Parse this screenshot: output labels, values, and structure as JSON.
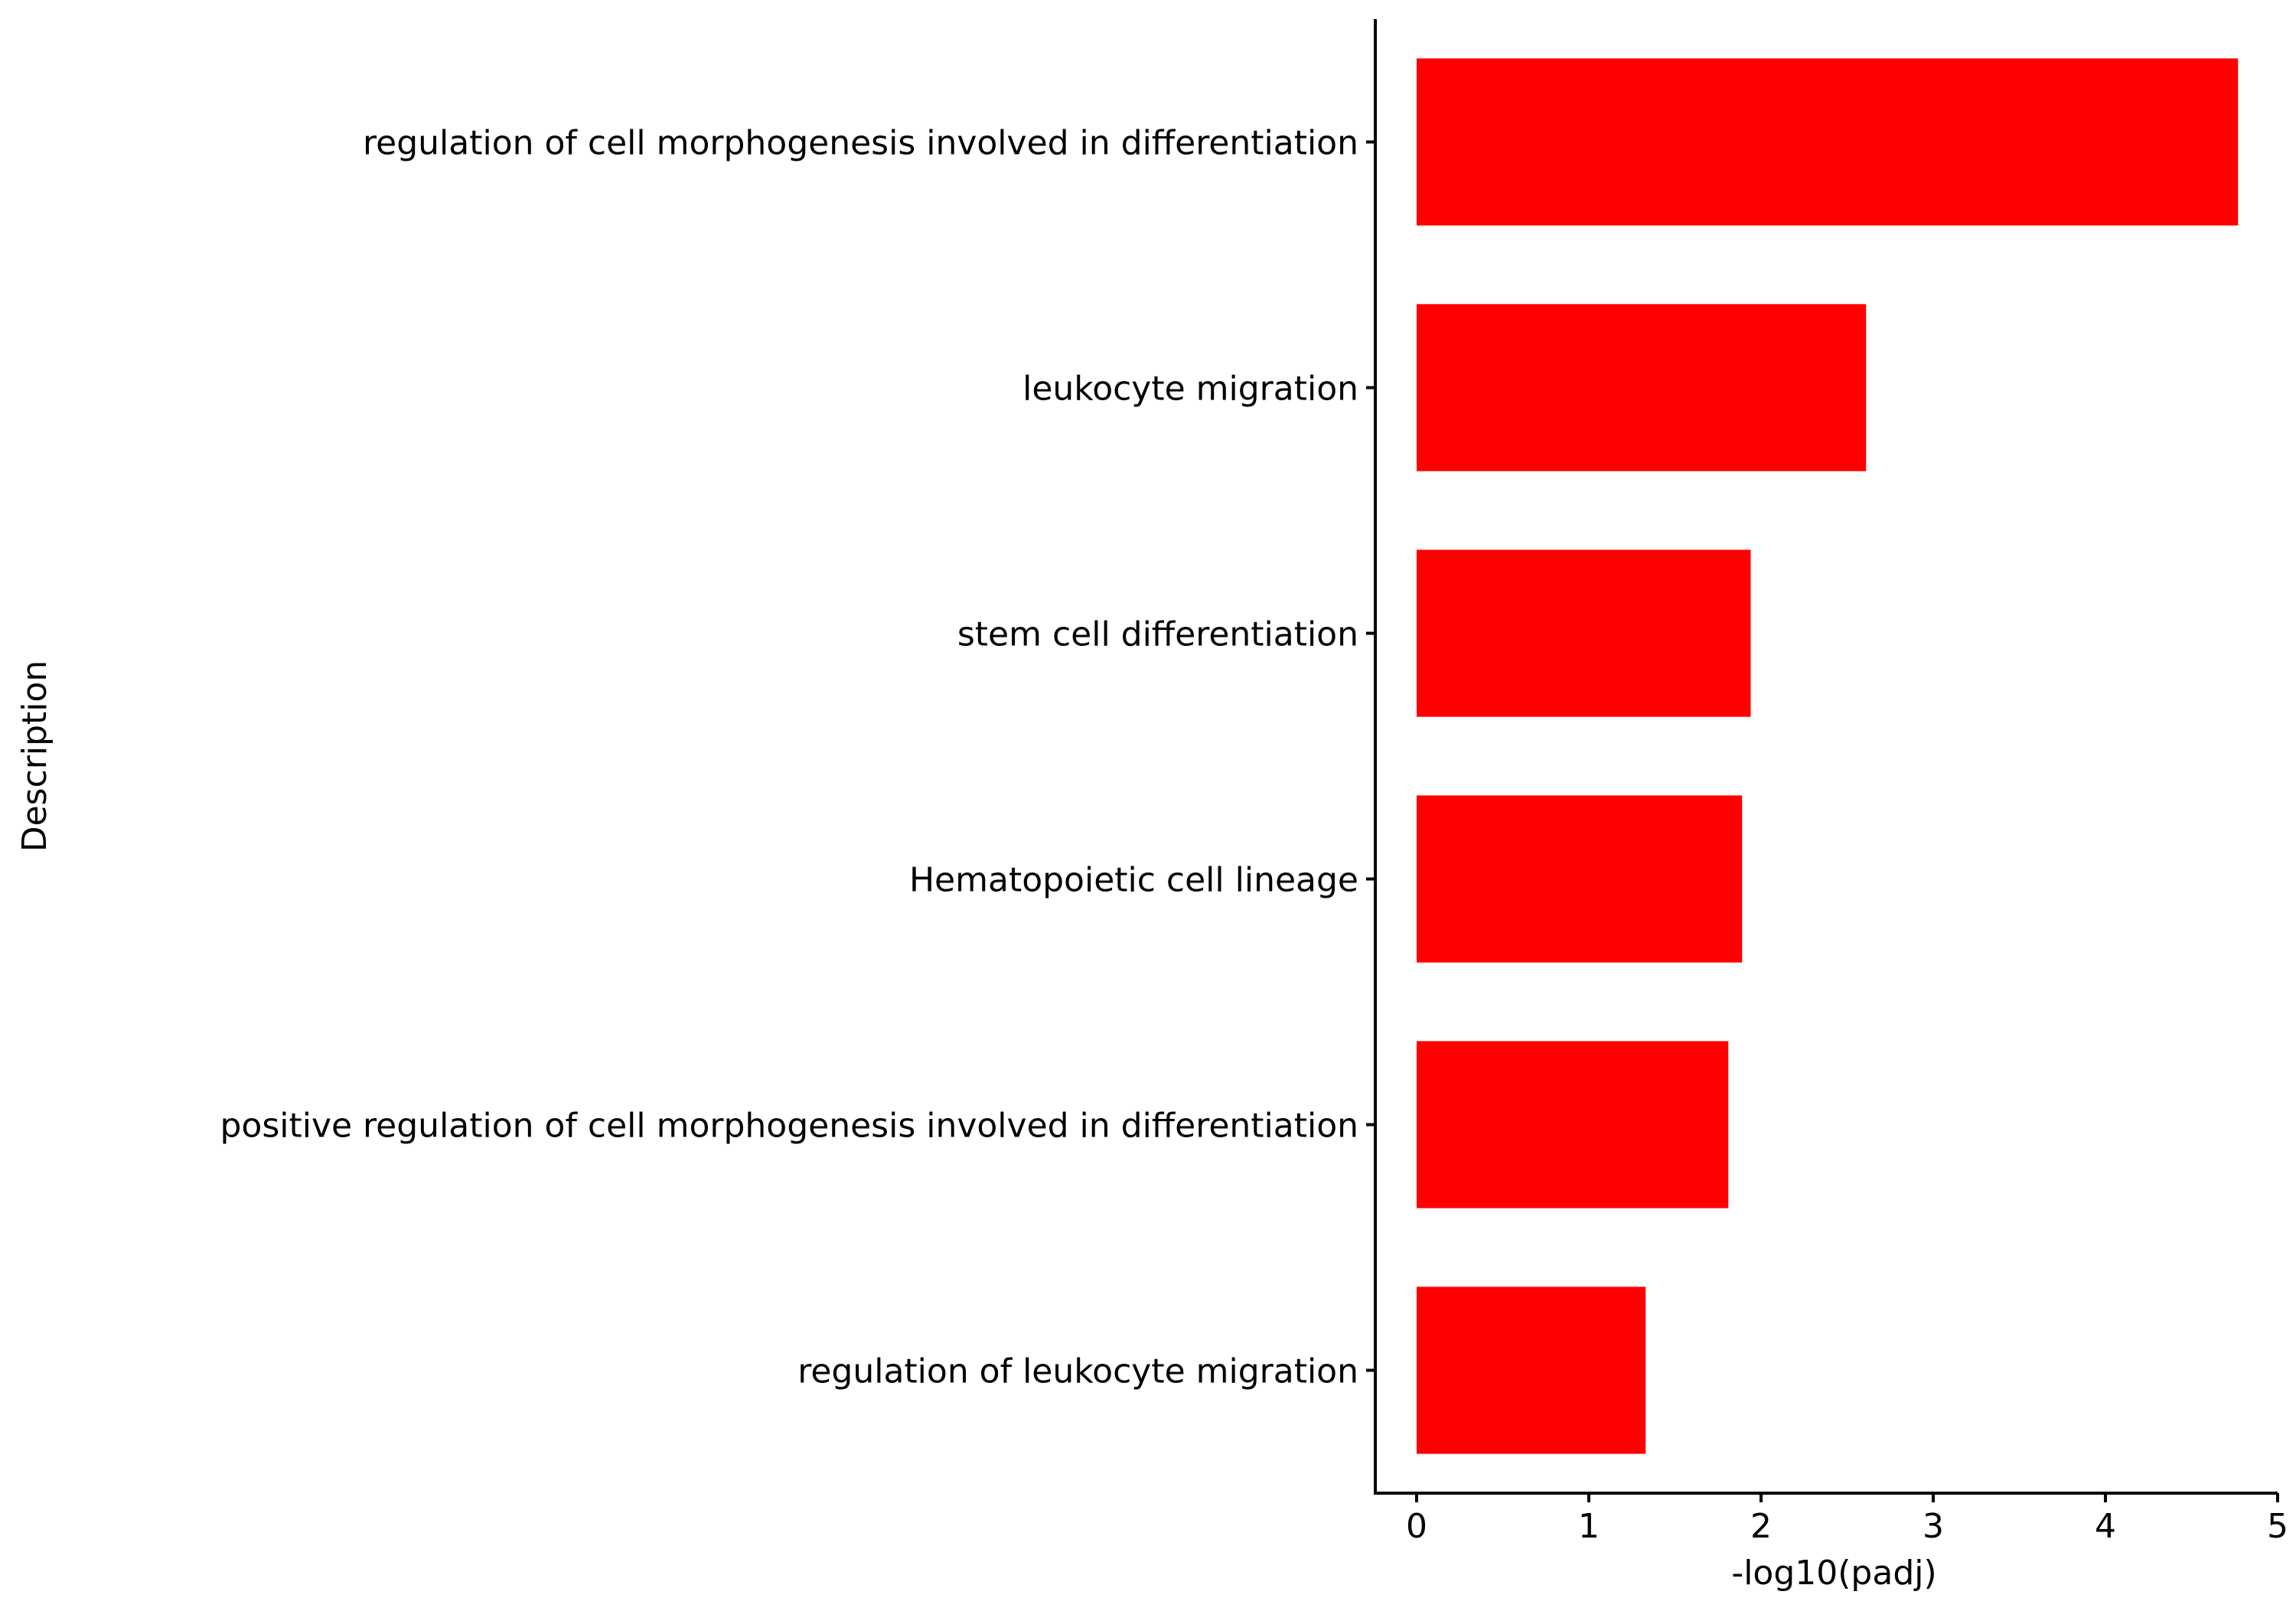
{
  "chart_data": {
    "type": "bar",
    "orientation": "horizontal",
    "categories": [
      "regulation of cell morphogenesis involved in differentiation",
      "leukocyte migration",
      "stem cell differentiation",
      "Hematopoietic cell lineage",
      "positive regulation of cell morphogenesis involved in differentiation",
      "regulation of leukocyte migration"
    ],
    "values": [
      4.77,
      2.61,
      1.94,
      1.89,
      1.81,
      1.33
    ],
    "xlabel": "-log10(padj)",
    "ylabel": "Description",
    "xlim": [
      -0.24,
      5.0
    ],
    "xticks": [
      "0",
      "1",
      "2",
      "3",
      "4",
      "5"
    ],
    "grid": false,
    "legend": "none",
    "bar_color": "#ff0000"
  }
}
